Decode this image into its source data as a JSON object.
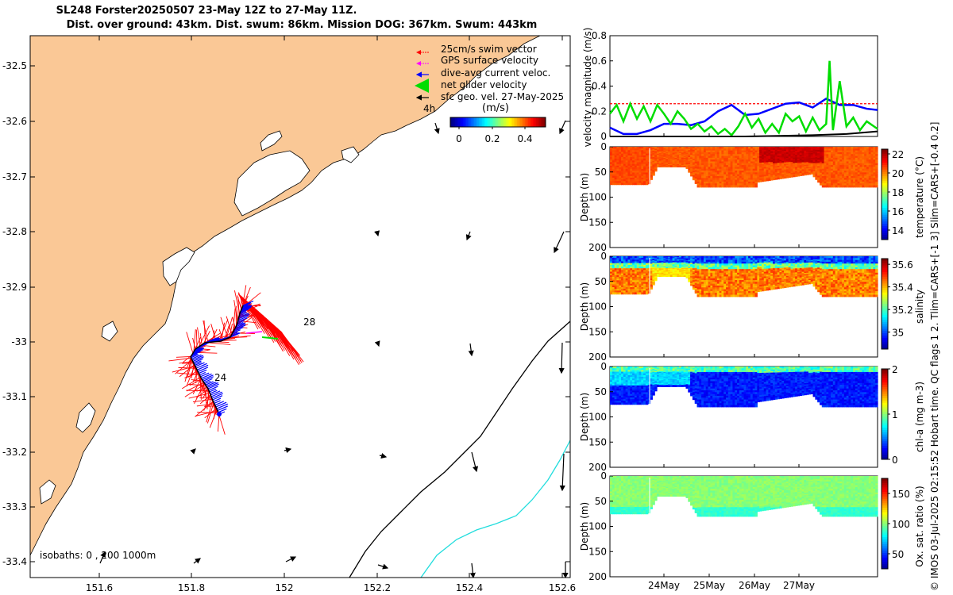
{
  "header": {
    "title_line1": "SL248 Forster20250507 23-May 12Z to 27-May 11Z.",
    "title_line2": "Dist. over ground: 43km. Dist. swum: 86km. Mission DOG: 367km. Swum: 443km"
  },
  "side_caption": "© IMOS 03-Jul-2025 02:15:52 Hobart time. QC flags 1  2. Tlim=CARS+[-1 3] Slim=CARS+[-0.4 0.2]",
  "colors": {
    "land": "#FAC896",
    "swim_vector": "#FF0000",
    "gps_velocity": "#FF00FF",
    "current_velocity": "#0000FF",
    "net_velocity": "#00DD00",
    "geo_velocity": "#000000",
    "isobath_200": "#000000",
    "isobath_1000": "#22DDDD"
  },
  "map": {
    "lat_ticks": [
      "-32.5",
      "-32.6",
      "-32.7",
      "-32.8",
      "-32.9",
      "-33",
      "-33.1",
      "-33.2",
      "-33.3",
      "-33.4"
    ],
    "lon_ticks": [
      "151.6",
      "151.8",
      "152",
      "152.2",
      "152.4",
      "152.6"
    ],
    "legend": [
      "25cm/s swim vector",
      "GPS surface velocity",
      "dive-avg current veloc.",
      "net glider velocity",
      "sfc geo. vel. 27-May-2025"
    ],
    "legend_extra": "4h",
    "colorbar_title": "(m/s)",
    "colorbar_ticks": [
      "0",
      "0.2",
      "0.4"
    ],
    "track_labels": [
      "28",
      "24"
    ],
    "isobath_note": "isobaths: 0 , 200  1000m"
  },
  "chart_data": [
    {
      "type": "line",
      "title": "",
      "ylabel": "velocity magnitude (m/s)",
      "ylim": [
        0,
        0.8
      ],
      "yticks": [
        "0",
        "0.2",
        "0.4",
        "0.6",
        "0.8"
      ],
      "x_range_days": [
        23.5,
        27.46
      ],
      "series": [
        {
          "name": "25cm/s swim vector",
          "values": [
            0.26,
            0.26,
            0.26,
            0.26,
            0.26,
            0.26,
            0.26,
            0.26,
            0.26
          ]
        },
        {
          "name": "dive-avg current veloc.",
          "x": [
            23.5,
            23.7,
            23.9,
            24.1,
            24.3,
            24.5,
            24.7,
            24.9,
            25.1,
            25.3,
            25.5,
            25.7,
            25.9,
            26.1,
            26.3,
            26.5,
            26.7,
            26.9,
            27.1,
            27.3,
            27.46
          ],
          "values": [
            0.07,
            0.02,
            0.02,
            0.05,
            0.1,
            0.1,
            0.09,
            0.12,
            0.2,
            0.25,
            0.17,
            0.18,
            0.22,
            0.26,
            0.27,
            0.23,
            0.3,
            0.25,
            0.25,
            0.22,
            0.21
          ]
        },
        {
          "name": "net glider velocity",
          "x": [
            23.5,
            23.6,
            23.7,
            23.8,
            23.9,
            24.0,
            24.1,
            24.2,
            24.3,
            24.4,
            24.5,
            24.6,
            24.7,
            24.8,
            24.9,
            25.0,
            25.1,
            25.2,
            25.3,
            25.4,
            25.5,
            25.6,
            25.7,
            25.8,
            25.9,
            26.0,
            26.1,
            26.2,
            26.3,
            26.4,
            26.5,
            26.6,
            26.7,
            26.75,
            26.8,
            26.9,
            27.0,
            27.1,
            27.2,
            27.3,
            27.46
          ],
          "values": [
            0.18,
            0.25,
            0.12,
            0.26,
            0.14,
            0.24,
            0.12,
            0.25,
            0.18,
            0.1,
            0.2,
            0.14,
            0.06,
            0.1,
            0.04,
            0.08,
            0.02,
            0.06,
            0.01,
            0.08,
            0.18,
            0.07,
            0.14,
            0.03,
            0.1,
            0.03,
            0.18,
            0.12,
            0.16,
            0.04,
            0.15,
            0.05,
            0.1,
            0.6,
            0.05,
            0.44,
            0.08,
            0.15,
            0.05,
            0.12,
            0.06
          ]
        },
        {
          "name": "sfc geo. vel.",
          "x": [
            23.5,
            24.0,
            24.5,
            25.0,
            25.5,
            26.0,
            26.5,
            27.0,
            27.46
          ],
          "values": [
            0.0,
            0.0,
            0.0,
            0.0,
            0.0,
            0.005,
            0.01,
            0.02,
            0.04
          ]
        }
      ]
    },
    {
      "type": "heatmap",
      "variable": "temperature",
      "colorbar_label": "temperature (°C)",
      "clim": [
        13,
        22.5
      ],
      "colorbar_ticks": [
        "14",
        "16",
        "18",
        "20",
        "22"
      ],
      "ylabel": "Depth (m)",
      "yticks": [
        "0",
        "50",
        "100",
        "150",
        "200"
      ],
      "ylim": [
        0,
        200
      ]
    },
    {
      "type": "heatmap",
      "variable": "salinity",
      "colorbar_label": "salinity",
      "clim": [
        34.85,
        35.65
      ],
      "colorbar_ticks": [
        "35",
        "35.2",
        "35.4",
        "35.6"
      ],
      "ylabel": "Depth (m)",
      "yticks": [
        "0",
        "50",
        "100",
        "150",
        "200"
      ],
      "ylim": [
        0,
        200
      ]
    },
    {
      "type": "heatmap",
      "variable": "chlorophyll",
      "colorbar_label": "chl-a (mg m-3)",
      "clim": [
        0,
        2
      ],
      "colorbar_ticks": [
        "0",
        "1",
        "2"
      ],
      "ylabel": "Depth (m)",
      "yticks": [
        "0",
        "50",
        "100",
        "150",
        "200"
      ],
      "ylim": [
        0,
        200
      ]
    },
    {
      "type": "heatmap",
      "variable": "oxygen_saturation",
      "colorbar_label": "Ox. sat. ratio (%)",
      "clim": [
        25,
        175
      ],
      "colorbar_ticks": [
        "50",
        "100",
        "150"
      ],
      "ylabel": "Depth (m)",
      "yticks": [
        "0",
        "50",
        "100",
        "150",
        "200"
      ],
      "ylim": [
        0,
        200
      ]
    }
  ],
  "time_axis": {
    "ticks": [
      "24May",
      "25May",
      "26May",
      "27May"
    ]
  }
}
